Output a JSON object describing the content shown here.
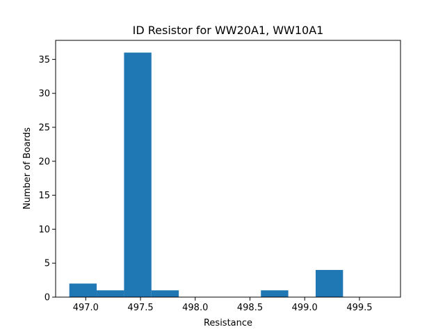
{
  "chart_data": {
    "type": "bar",
    "title": "ID Resistor for WW20A1, WW10A1",
    "xlabel": "Resistance",
    "ylabel": "Number of Boards",
    "bins": [
      {
        "x0": 496.85,
        "x1": 497.1,
        "count": 2
      },
      {
        "x0": 497.1,
        "x1": 497.35,
        "count": 1
      },
      {
        "x0": 497.35,
        "x1": 497.6,
        "count": 36
      },
      {
        "x0": 497.6,
        "x1": 497.85,
        "count": 1
      },
      {
        "x0": 497.85,
        "x1": 498.1,
        "count": 0
      },
      {
        "x0": 498.1,
        "x1": 498.35,
        "count": 0
      },
      {
        "x0": 498.35,
        "x1": 498.6,
        "count": 0
      },
      {
        "x0": 498.6,
        "x1": 498.85,
        "count": 1
      },
      {
        "x0": 498.85,
        "x1": 499.1,
        "count": 0
      },
      {
        "x0": 499.1,
        "x1": 499.35,
        "count": 4
      }
    ],
    "xlim": [
      496.725,
      499.875
    ],
    "ylim": [
      0,
      37.8
    ],
    "xticks": [
      497.0,
      497.5,
      498.0,
      498.5,
      499.0,
      499.5
    ],
    "xtick_labels": [
      "497.0",
      "497.5",
      "498.0",
      "498.5",
      "499.0",
      "499.5"
    ],
    "yticks": [
      0,
      5,
      10,
      15,
      20,
      25,
      30,
      35
    ],
    "ytick_labels": [
      "0",
      "5",
      "10",
      "15",
      "20",
      "25",
      "30",
      "35"
    ],
    "grid": false,
    "bar_color": "#1f77b4"
  }
}
